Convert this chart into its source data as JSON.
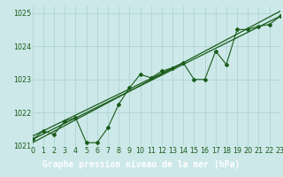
{
  "title": "Graphe pression niveau de la mer (hPa)",
  "bg_color": "#cce8e8",
  "label_bg_color": "#2d6e2d",
  "grid_color": "#aad0d0",
  "line_color": "#1a5c1a",
  "x_min": 0,
  "x_max": 23,
  "y_min": 1021.0,
  "y_max": 1025.2,
  "y_ticks": [
    1021,
    1022,
    1023,
    1024,
    1025
  ],
  "x_ticks": [
    0,
    1,
    2,
    3,
    4,
    5,
    6,
    7,
    8,
    9,
    10,
    11,
    12,
    13,
    14,
    15,
    16,
    17,
    18,
    19,
    20,
    21,
    22,
    23
  ],
  "main_series": [
    [
      0,
      1021.2
    ],
    [
      1,
      1021.45
    ],
    [
      2,
      1021.35
    ],
    [
      3,
      1021.75
    ],
    [
      4,
      1021.85
    ],
    [
      5,
      1021.1
    ],
    [
      6,
      1021.1
    ],
    [
      7,
      1021.55
    ],
    [
      8,
      1022.25
    ],
    [
      9,
      1022.75
    ],
    [
      10,
      1023.15
    ],
    [
      11,
      1023.05
    ],
    [
      12,
      1023.25
    ],
    [
      13,
      1023.35
    ],
    [
      14,
      1023.5
    ],
    [
      15,
      1023.0
    ],
    [
      16,
      1023.0
    ],
    [
      17,
      1023.85
    ],
    [
      18,
      1023.45
    ],
    [
      19,
      1024.5
    ],
    [
      20,
      1024.5
    ],
    [
      21,
      1024.6
    ],
    [
      22,
      1024.65
    ],
    [
      23,
      1024.9
    ]
  ],
  "line1": [
    [
      0,
      1021.2
    ],
    [
      23,
      1024.9
    ]
  ],
  "line2": [
    [
      0,
      1021.1
    ],
    [
      23,
      1025.05
    ]
  ],
  "line3": [
    [
      0,
      1021.3
    ],
    [
      14,
      1023.5
    ]
  ],
  "font_color": "#1a5c1a",
  "title_fontsize": 7.0,
  "tick_fontsize": 5.8,
  "label_text_color": "#aaddaa"
}
